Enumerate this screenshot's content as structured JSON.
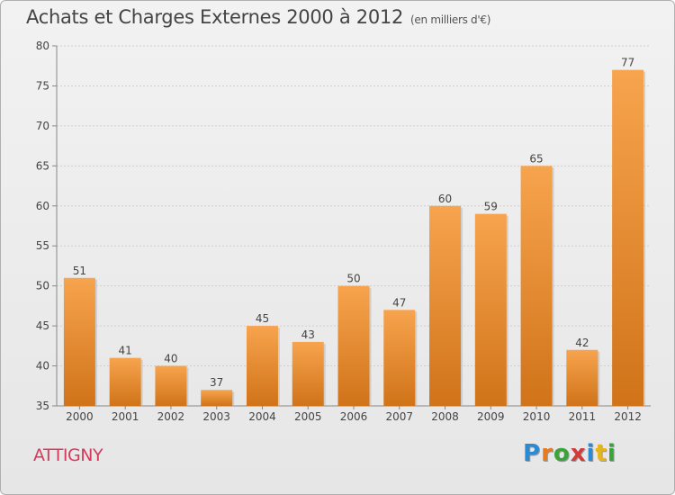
{
  "title": "Achats et Charges Externes 2000 à 2012",
  "subtitle": "(en milliers d'€)",
  "city": "ATTIGNY",
  "logo": {
    "letters": [
      "P",
      "r",
      "o",
      "x",
      "i",
      "t",
      "i"
    ],
    "colors": [
      "#2a8ad4",
      "#e87b1c",
      "#3aa43a",
      "#d43a3a",
      "#2a8ad4",
      "#e8b41c",
      "#3aa43a"
    ]
  },
  "colors": {
    "bar_light": "#f7a44e",
    "bar_dark": "#d07319",
    "grid": "#cfcfcf",
    "axis": "#888888"
  },
  "chart_data": {
    "type": "bar",
    "categories": [
      "2000",
      "2001",
      "2002",
      "2003",
      "2004",
      "2005",
      "2006",
      "2007",
      "2008",
      "2009",
      "2010",
      "2011",
      "2012"
    ],
    "values": [
      51,
      41,
      40,
      37,
      45,
      43,
      50,
      47,
      60,
      59,
      65,
      42,
      77
    ],
    "ylim": [
      35,
      80
    ],
    "yticks": [
      35,
      40,
      45,
      50,
      55,
      60,
      65,
      70,
      75,
      80
    ],
    "grid": true
  }
}
